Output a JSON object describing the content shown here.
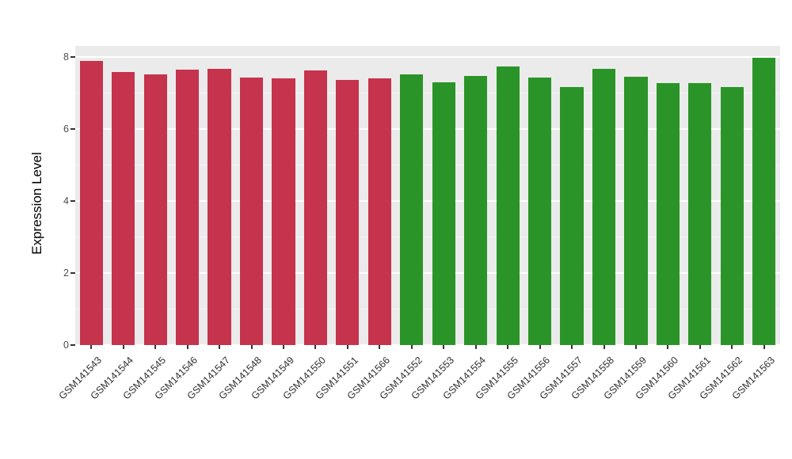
{
  "chart_data": {
    "type": "bar",
    "title": "",
    "xlabel": "",
    "ylabel": "Expression Level",
    "ylim": [
      0,
      8.3
    ],
    "yticks": [
      0,
      2,
      4,
      6,
      8
    ],
    "yticks_minor": [
      1,
      3,
      5,
      7
    ],
    "grid": true,
    "legend_position": "none",
    "panel_bg": "#EBEBEB",
    "grid_major_color": "#FFFFFF",
    "grid_minor_color": "#F6F6F6",
    "group_colors": {
      "left-group-red": "#C5334D",
      "right-group-green": "#2B9428"
    },
    "categories": [
      "GSM141543",
      "GSM141544",
      "GSM141545",
      "GSM141546",
      "GSM141547",
      "GSM141548",
      "GSM141549",
      "GSM141550",
      "GSM141551",
      "GSM141566",
      "GSM141552",
      "GSM141553",
      "GSM141554",
      "GSM141555",
      "GSM141556",
      "GSM141557",
      "GSM141558",
      "GSM141559",
      "GSM141560",
      "GSM141561",
      "GSM141562",
      "GSM141563"
    ],
    "values": [
      7.88,
      7.57,
      7.5,
      7.65,
      7.66,
      7.42,
      7.4,
      7.62,
      7.36,
      7.4,
      7.52,
      7.28,
      7.47,
      7.73,
      7.42,
      7.15,
      7.67,
      7.45,
      7.27,
      7.27,
      7.15,
      7.97
    ],
    "bar_colors": [
      "#C5334D",
      "#C5334D",
      "#C5334D",
      "#C5334D",
      "#C5334D",
      "#C5334D",
      "#C5334D",
      "#C5334D",
      "#C5334D",
      "#C5334D",
      "#2B9428",
      "#2B9428",
      "#2B9428",
      "#2B9428",
      "#2B9428",
      "#2B9428",
      "#2B9428",
      "#2B9428",
      "#2B9428",
      "#2B9428",
      "#2B9428",
      "#2B9428"
    ]
  }
}
